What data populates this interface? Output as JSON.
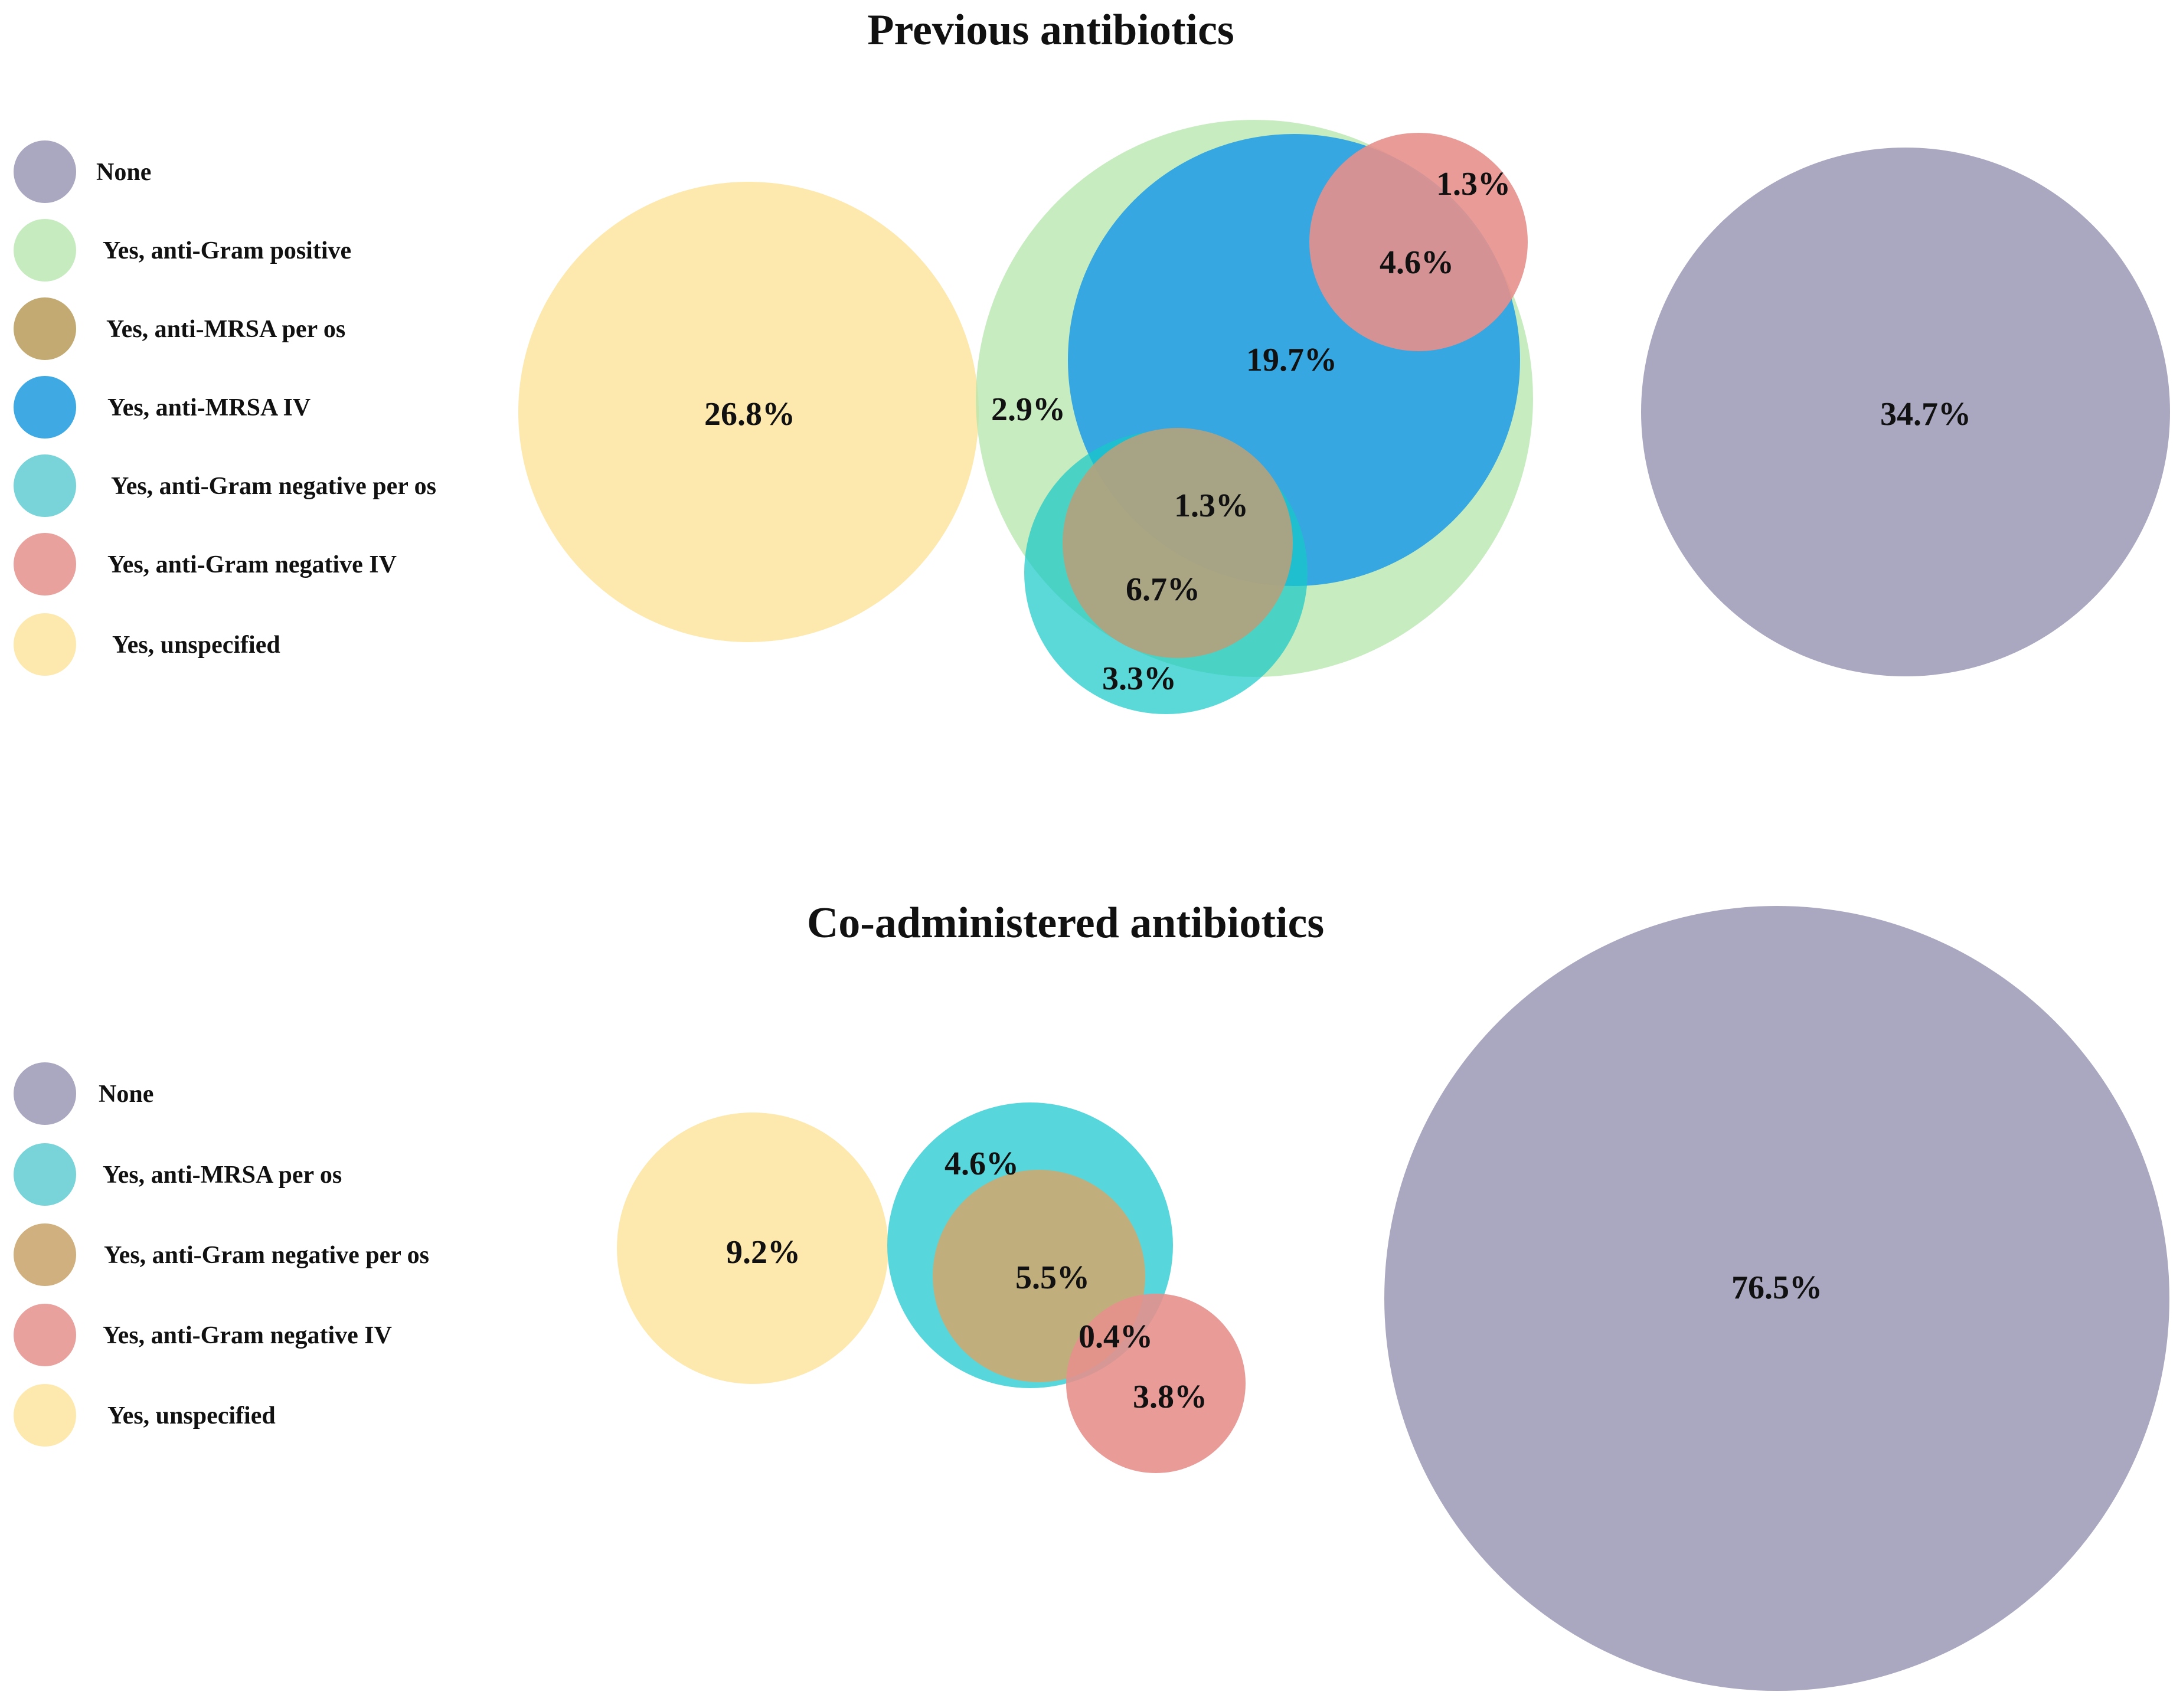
{
  "chart_data": [
    {
      "type": "venn",
      "title": "Previous antibiotics",
      "legend": [
        {
          "label": "None",
          "color": "#aaa7c0"
        },
        {
          "label": "Yes, anti-Gram positive",
          "color": "#c6ebbf"
        },
        {
          "label": "Yes, anti-MRSA per os",
          "color": "#c2aa72"
        },
        {
          "label": "Yes, anti-MRSA IV",
          "color": "#3ea9e2"
        },
        {
          "label": "Yes, anti-Gram negative per os",
          "color": "#78d4d8"
        },
        {
          "label": "Yes, anti-Gram negative IV",
          "color": "#e8a19d"
        },
        {
          "label": "Yes, unspecified",
          "color": "#fde8ad"
        }
      ],
      "circles": [
        {
          "category": "Yes, unspecified",
          "color": "#fde8ad",
          "opacity": 1.0
        },
        {
          "category": "Yes, anti-Gram positive",
          "color": "#b4e6ab",
          "opacity": 0.75
        },
        {
          "category": "Yes, anti-MRSA IV",
          "color": "#2ea3e1",
          "opacity": 0.95
        },
        {
          "category": "Yes, anti-Gram negative IV",
          "color": "#e5908c",
          "opacity": 0.9
        },
        {
          "category": "Yes, anti-Gram negative per os",
          "color": "#15c9c8",
          "opacity": 0.7
        },
        {
          "category": "Yes, anti-MRSA per os",
          "color": "#b2a27e",
          "opacity": 0.92
        },
        {
          "category": "None",
          "color": "#aaa7c0",
          "opacity": 1.0
        }
      ],
      "labels": [
        {
          "text": "26.8%",
          "region": "Yes, unspecified"
        },
        {
          "text": "2.9%",
          "region": "Yes, anti-Gram positive"
        },
        {
          "text": "19.7%",
          "region": "Yes, anti-MRSA IV"
        },
        {
          "text": "1.3%",
          "region": "Yes, anti-Gram negative IV"
        },
        {
          "text": "4.6%",
          "region": "Yes, anti-MRSA IV + Yes, anti-Gram negative IV"
        },
        {
          "text": "1.3%",
          "region": "Yes, anti-MRSA IV + Yes, anti-MRSA per os"
        },
        {
          "text": "6.7%",
          "region": "Yes, anti-MRSA per os"
        },
        {
          "text": "3.3%",
          "region": "Yes, anti-Gram negative per os"
        },
        {
          "text": "34.7%",
          "region": "None"
        }
      ]
    },
    {
      "type": "venn",
      "title": "Co-administered antibiotics",
      "legend": [
        {
          "label": "None",
          "color": "#aaa7c0"
        },
        {
          "label": "Yes, anti-MRSA per os",
          "color": "#78d4d8"
        },
        {
          "label": "Yes, anti-Gram negative per os",
          "color": "#cfb07e"
        },
        {
          "label": "Yes, anti-Gram negative IV",
          "color": "#e8a19d"
        },
        {
          "label": "Yes, unspecified",
          "color": "#fde8ad"
        }
      ],
      "circles": [
        {
          "category": "Yes, unspecified",
          "color": "#fde8ad",
          "opacity": 1.0
        },
        {
          "category": "Yes, anti-MRSA per os",
          "color": "#57d6db",
          "opacity": 1.0
        },
        {
          "category": "Yes, anti-Gram negative per os",
          "color": "#c9ab75",
          "opacity": 0.92
        },
        {
          "category": "Yes, anti-Gram negative IV",
          "color": "#e5908c",
          "opacity": 0.9
        },
        {
          "category": "None",
          "color": "#aaa7c0",
          "opacity": 1.0
        }
      ],
      "labels": [
        {
          "text": "9.2%",
          "region": "Yes, unspecified"
        },
        {
          "text": "4.6%",
          "region": "Yes, anti-MRSA per os"
        },
        {
          "text": "5.5%",
          "region": "Yes, anti-Gram negative per os"
        },
        {
          "text": "0.4%",
          "region": "Yes, anti-Gram negative per os + Yes, anti-Gram negative IV"
        },
        {
          "text": "3.8%",
          "region": "Yes, anti-Gram negative IV"
        },
        {
          "text": "76.5%",
          "region": "None"
        }
      ]
    }
  ]
}
